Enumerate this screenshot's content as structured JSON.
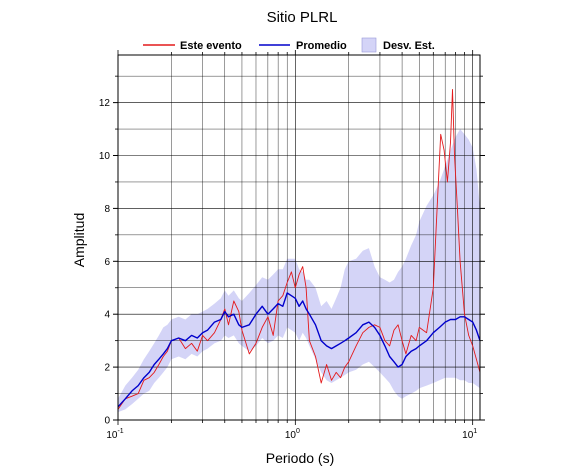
{
  "chart_data": {
    "type": "line",
    "title": "Sitio PLRL",
    "xlabel": "Periodo (s)",
    "ylabel": "Amplitud",
    "x_scale": "log",
    "xlim": [
      0.1,
      11.0
    ],
    "ylim": [
      0,
      13.8
    ],
    "y_ticks": [
      "0",
      "2",
      "4",
      "6",
      "8",
      "10",
      "12"
    ],
    "x_ticks": [
      {
        "value": 0.1,
        "base": "10",
        "exp": "-1"
      },
      {
        "value": 1,
        "base": "10",
        "exp": "0"
      },
      {
        "value": 10,
        "base": "10",
        "exp": "1"
      }
    ],
    "grid": true,
    "legend_position": "top",
    "legend": [
      {
        "label": "Este evento",
        "kind": "line",
        "color": "#e41a1c"
      },
      {
        "label": "Promedio",
        "kind": "line",
        "color": "#0000cc"
      },
      {
        "label": "Desv. Est.",
        "kind": "band",
        "color": "#d4d4f7"
      }
    ],
    "series": [
      {
        "name": "Este evento",
        "color": "#e41a1c",
        "x": [
          0.1,
          0.11,
          0.12,
          0.13,
          0.14,
          0.15,
          0.16,
          0.17,
          0.18,
          0.19,
          0.2,
          0.22,
          0.24,
          0.26,
          0.28,
          0.3,
          0.32,
          0.35,
          0.38,
          0.4,
          0.42,
          0.45,
          0.48,
          0.5,
          0.55,
          0.6,
          0.65,
          0.7,
          0.75,
          0.8,
          0.85,
          0.9,
          0.95,
          1.0,
          1.05,
          1.1,
          1.15,
          1.2,
          1.3,
          1.4,
          1.5,
          1.6,
          1.7,
          1.8,
          1.9,
          2.0,
          2.2,
          2.4,
          2.6,
          2.8,
          3.0,
          3.2,
          3.4,
          3.6,
          3.8,
          4.0,
          4.2,
          4.5,
          4.8,
          5.0,
          5.5,
          6.0,
          6.3,
          6.6,
          6.9,
          7.2,
          7.5,
          7.7,
          7.9,
          8.2,
          8.5,
          9.0,
          9.5,
          10.0,
          10.5,
          11.0
        ],
        "y": [
          0.4,
          0.8,
          0.9,
          1.0,
          1.5,
          1.6,
          1.8,
          2.1,
          2.4,
          2.6,
          3.0,
          3.1,
          2.7,
          2.9,
          2.6,
          3.2,
          3.0,
          3.3,
          3.8,
          4.2,
          3.6,
          4.5,
          4.1,
          3.4,
          2.5,
          2.9,
          3.5,
          3.9,
          3.2,
          4.5,
          4.7,
          5.2,
          5.6,
          5.0,
          5.5,
          5.8,
          5.0,
          3.0,
          2.4,
          1.4,
          2.1,
          1.5,
          1.8,
          1.6,
          2.0,
          2.2,
          2.8,
          3.3,
          3.5,
          3.6,
          3.5,
          3.0,
          2.8,
          3.4,
          3.6,
          3.0,
          2.5,
          3.2,
          3.0,
          3.5,
          3.3,
          5.0,
          8.0,
          10.8,
          10.2,
          9.0,
          10.5,
          12.5,
          10.0,
          8.0,
          6.0,
          4.0,
          3.2,
          2.8,
          2.3,
          1.8
        ]
      },
      {
        "name": "Promedio",
        "color": "#0000cc",
        "x": [
          0.1,
          0.11,
          0.12,
          0.13,
          0.14,
          0.15,
          0.16,
          0.17,
          0.18,
          0.19,
          0.2,
          0.22,
          0.24,
          0.26,
          0.28,
          0.3,
          0.32,
          0.35,
          0.38,
          0.4,
          0.42,
          0.45,
          0.48,
          0.5,
          0.55,
          0.6,
          0.65,
          0.7,
          0.75,
          0.8,
          0.85,
          0.9,
          0.95,
          1.0,
          1.05,
          1.1,
          1.15,
          1.2,
          1.3,
          1.4,
          1.5,
          1.6,
          1.7,
          1.8,
          1.9,
          2.0,
          2.2,
          2.4,
          2.6,
          2.8,
          3.0,
          3.2,
          3.4,
          3.6,
          3.8,
          4.0,
          4.2,
          4.5,
          4.8,
          5.0,
          5.5,
          6.0,
          6.5,
          7.0,
          7.5,
          8.0,
          8.5,
          9.0,
          9.5,
          10.0,
          10.5,
          11.0
        ],
        "y": [
          0.5,
          0.8,
          1.1,
          1.3,
          1.6,
          1.8,
          2.1,
          2.3,
          2.5,
          2.7,
          3.0,
          3.1,
          3.0,
          3.2,
          3.1,
          3.3,
          3.4,
          3.7,
          3.8,
          4.1,
          3.9,
          4.0,
          3.6,
          3.5,
          3.6,
          4.0,
          4.3,
          4.0,
          4.2,
          4.4,
          4.3,
          4.8,
          4.7,
          4.6,
          4.3,
          4.5,
          4.2,
          4.0,
          3.6,
          3.0,
          2.8,
          2.7,
          2.8,
          2.9,
          3.0,
          3.1,
          3.3,
          3.6,
          3.7,
          3.5,
          3.2,
          2.8,
          2.4,
          2.2,
          2.0,
          2.1,
          2.4,
          2.6,
          2.7,
          2.8,
          3.0,
          3.3,
          3.5,
          3.7,
          3.8,
          3.8,
          3.9,
          3.9,
          3.8,
          3.7,
          3.4,
          3.0
        ]
      }
    ],
    "band": {
      "name": "Desv. Est.",
      "color": "#d4d4f7",
      "x": [
        0.1,
        0.11,
        0.12,
        0.13,
        0.14,
        0.15,
        0.16,
        0.17,
        0.18,
        0.19,
        0.2,
        0.22,
        0.24,
        0.26,
        0.28,
        0.3,
        0.32,
        0.35,
        0.38,
        0.4,
        0.42,
        0.45,
        0.48,
        0.5,
        0.55,
        0.6,
        0.65,
        0.7,
        0.75,
        0.8,
        0.85,
        0.9,
        0.95,
        1.0,
        1.05,
        1.1,
        1.15,
        1.2,
        1.3,
        1.4,
        1.5,
        1.6,
        1.7,
        1.8,
        1.9,
        2.0,
        2.2,
        2.4,
        2.6,
        2.8,
        3.0,
        3.2,
        3.4,
        3.6,
        3.8,
        4.0,
        4.2,
        4.5,
        4.8,
        5.0,
        5.5,
        6.0,
        6.5,
        7.0,
        7.5,
        8.0,
        8.5,
        9.0,
        9.5,
        10.0,
        10.5,
        11.0
      ],
      "upper": [
        0.8,
        1.3,
        1.6,
        1.9,
        2.3,
        2.6,
        2.9,
        3.2,
        3.5,
        3.6,
        3.8,
        3.9,
        3.8,
        4.0,
        4.0,
        4.1,
        4.2,
        4.4,
        4.6,
        4.9,
        4.7,
        4.9,
        4.6,
        4.5,
        4.8,
        5.1,
        5.4,
        5.3,
        5.5,
        5.7,
        5.7,
        6.1,
        6.1,
        6.1,
        5.7,
        5.6,
        5.3,
        5.3,
        5.0,
        4.3,
        4.5,
        4.2,
        4.6,
        5.0,
        5.7,
        6.0,
        6.1,
        6.4,
        6.5,
        5.8,
        5.4,
        5.3,
        5.2,
        5.3,
        5.6,
        5.8,
        6.1,
        6.6,
        7.0,
        7.5,
        8.1,
        8.5,
        9.0,
        9.6,
        10.2,
        10.7,
        11.0,
        10.8,
        10.6,
        10.3,
        9.5,
        8.0
      ],
      "lower": [
        0.3,
        0.4,
        0.6,
        0.8,
        1.0,
        1.1,
        1.4,
        1.6,
        1.8,
        2.0,
        2.3,
        2.4,
        2.3,
        2.5,
        2.4,
        2.6,
        2.7,
        2.9,
        3.0,
        3.2,
        3.1,
        3.2,
        2.9,
        2.8,
        2.6,
        2.8,
        3.1,
        2.9,
        3.0,
        3.2,
        3.1,
        3.5,
        3.4,
        3.3,
        3.0,
        3.3,
        3.1,
        2.8,
        2.3,
        1.8,
        1.5,
        1.4,
        1.5,
        1.6,
        1.7,
        1.8,
        1.9,
        2.1,
        2.2,
        2.0,
        1.8,
        1.6,
        1.4,
        1.1,
        0.9,
        0.8,
        0.9,
        1.0,
        1.1,
        1.2,
        1.3,
        1.4,
        1.5,
        1.6,
        1.6,
        1.6,
        1.5,
        1.5,
        1.4,
        1.4,
        1.3,
        1.2
      ]
    }
  }
}
